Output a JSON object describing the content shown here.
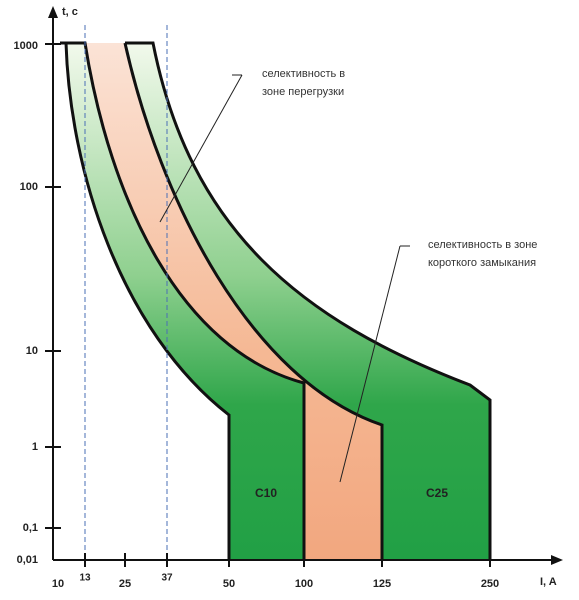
{
  "axes": {
    "y_title": "t, c",
    "x_title": "I, A",
    "y_ticks": [
      "1000",
      "100",
      "10",
      "1",
      "0,1",
      "0,01"
    ],
    "x_ticks": [
      "10",
      "13",
      "25",
      "37",
      "50",
      "100",
      "125",
      "250"
    ]
  },
  "annotations": {
    "overload": [
      "селективность в",
      "зоне перегрузки"
    ],
    "short_circuit": [
      "селективность в зоне",
      "короткого замыкания"
    ]
  },
  "curves": {
    "c10": "C10",
    "c25": "C25"
  }
}
